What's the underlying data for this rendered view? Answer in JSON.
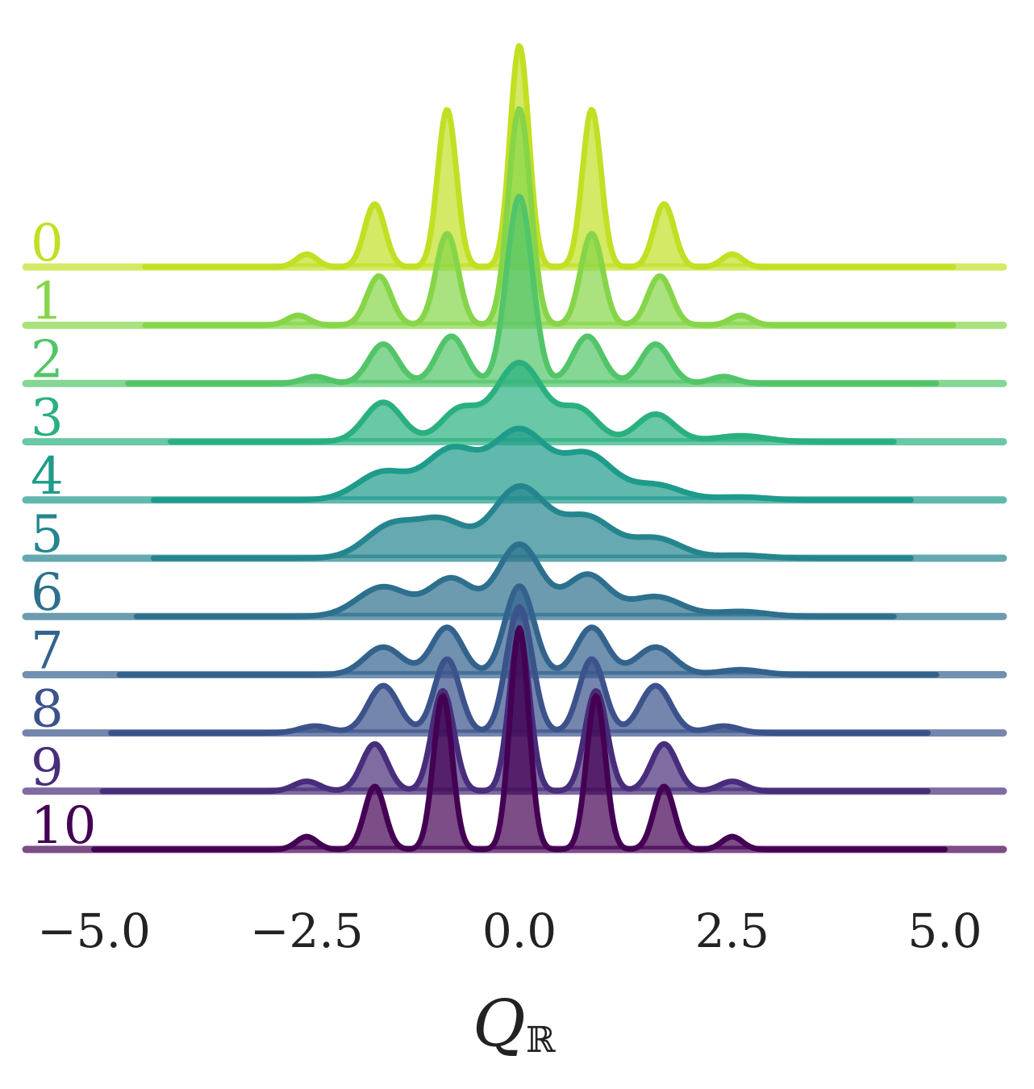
{
  "chart_data": {
    "type": "ridgeline",
    "xlabel": "Q",
    "xlabel_subscript": "ℝ",
    "xlim": [
      -6.0,
      6.0
    ],
    "xticks": [
      -5.0,
      -2.5,
      0.0,
      2.5,
      5.0
    ],
    "xtick_labels": [
      "−5.0",
      "−2.5",
      "0.0",
      "2.5",
      "5.0"
    ],
    "grid": false,
    "legend": "none",
    "series": [
      {
        "label": "0",
        "color": "#c2df23",
        "peaks": [
          {
            "x": -2.5,
            "h": 0.13,
            "w": 0.12
          },
          {
            "x": -1.7,
            "h": 0.64,
            "w": 0.12
          },
          {
            "x": -0.85,
            "h": 1.6,
            "w": 0.11
          },
          {
            "x": 0.0,
            "h": 2.25,
            "w": 0.11
          },
          {
            "x": 0.85,
            "h": 1.6,
            "w": 0.11
          },
          {
            "x": 1.7,
            "h": 0.64,
            "w": 0.12
          },
          {
            "x": 2.5,
            "h": 0.13,
            "w": 0.12
          }
        ],
        "range": [
          -4.4,
          5.1
        ]
      },
      {
        "label": "1",
        "color": "#86d549",
        "peaks": [
          {
            "x": -2.6,
            "h": 0.1,
            "w": 0.13
          },
          {
            "x": -1.65,
            "h": 0.5,
            "w": 0.14
          },
          {
            "x": -0.85,
            "h": 0.93,
            "w": 0.13
          },
          {
            "x": 0.0,
            "h": 2.2,
            "w": 0.13
          },
          {
            "x": 0.85,
            "h": 0.93,
            "w": 0.13
          },
          {
            "x": 1.65,
            "h": 0.5,
            "w": 0.14
          },
          {
            "x": 2.6,
            "h": 0.1,
            "w": 0.13
          }
        ],
        "range": [
          -4.4,
          5.1
        ]
      },
      {
        "label": "2",
        "color": "#52c569",
        "peaks": [
          {
            "x": -2.4,
            "h": 0.07,
            "w": 0.15
          },
          {
            "x": -1.6,
            "h": 0.4,
            "w": 0.17
          },
          {
            "x": -0.8,
            "h": 0.48,
            "w": 0.17
          },
          {
            "x": 0.0,
            "h": 1.9,
            "w": 0.15
          },
          {
            "x": 0.8,
            "h": 0.48,
            "w": 0.17
          },
          {
            "x": 1.6,
            "h": 0.4,
            "w": 0.17
          },
          {
            "x": 2.4,
            "h": 0.07,
            "w": 0.15
          }
        ],
        "range": [
          -4.6,
          4.9
        ]
      },
      {
        "label": "3",
        "color": "#2ab07f",
        "peaks": [
          {
            "x": -1.6,
            "h": 0.4,
            "w": 0.22
          },
          {
            "x": -0.7,
            "h": 0.32,
            "w": 0.22
          },
          {
            "x": 0.0,
            "h": 0.8,
            "w": 0.28
          },
          {
            "x": 0.7,
            "h": 0.32,
            "w": 0.22
          },
          {
            "x": 1.6,
            "h": 0.28,
            "w": 0.22
          },
          {
            "x": 2.6,
            "h": 0.06,
            "w": 0.3
          }
        ],
        "range": [
          -4.1,
          4.4
        ]
      },
      {
        "label": "4",
        "color": "#1e9b8a",
        "peaks": [
          {
            "x": -1.6,
            "h": 0.28,
            "w": 0.3
          },
          {
            "x": -0.8,
            "h": 0.5,
            "w": 0.3
          },
          {
            "x": 0.0,
            "h": 0.7,
            "w": 0.32
          },
          {
            "x": 0.8,
            "h": 0.45,
            "w": 0.3
          },
          {
            "x": 1.6,
            "h": 0.15,
            "w": 0.3
          },
          {
            "x": 2.6,
            "h": 0.03,
            "w": 0.3
          }
        ],
        "range": [
          -4.3,
          4.6
        ]
      },
      {
        "label": "5",
        "color": "#25858e",
        "peaks": [
          {
            "x": -1.5,
            "h": 0.33,
            "w": 0.3
          },
          {
            "x": -0.9,
            "h": 0.35,
            "w": 0.28
          },
          {
            "x": 0.0,
            "h": 0.72,
            "w": 0.32
          },
          {
            "x": 0.8,
            "h": 0.4,
            "w": 0.3
          },
          {
            "x": 1.6,
            "h": 0.2,
            "w": 0.3
          },
          {
            "x": 2.6,
            "h": 0.03,
            "w": 0.3
          }
        ],
        "range": [
          -4.3,
          4.6
        ]
      },
      {
        "label": "6",
        "color": "#2d708e",
        "peaks": [
          {
            "x": -1.6,
            "h": 0.3,
            "w": 0.3
          },
          {
            "x": -0.8,
            "h": 0.38,
            "w": 0.25
          },
          {
            "x": 0.0,
            "h": 0.73,
            "w": 0.25
          },
          {
            "x": 0.8,
            "h": 0.42,
            "w": 0.25
          },
          {
            "x": 1.6,
            "h": 0.2,
            "w": 0.3
          },
          {
            "x": 2.6,
            "h": 0.05,
            "w": 0.3
          }
        ],
        "range": [
          -4.5,
          4.4
        ]
      },
      {
        "label": "7",
        "color": "#33638d",
        "peaks": [
          {
            "x": -1.6,
            "h": 0.28,
            "w": 0.22
          },
          {
            "x": -0.85,
            "h": 0.48,
            "w": 0.18
          },
          {
            "x": 0.0,
            "h": 0.9,
            "w": 0.17
          },
          {
            "x": 0.85,
            "h": 0.48,
            "w": 0.18
          },
          {
            "x": 1.6,
            "h": 0.28,
            "w": 0.22
          },
          {
            "x": 2.6,
            "h": 0.05,
            "w": 0.25
          }
        ],
        "range": [
          -4.7,
          4.9
        ]
      },
      {
        "label": "8",
        "color": "#3b528b",
        "peaks": [
          {
            "x": -2.4,
            "h": 0.07,
            "w": 0.18
          },
          {
            "x": -1.6,
            "h": 0.48,
            "w": 0.18
          },
          {
            "x": -0.85,
            "h": 0.75,
            "w": 0.15
          },
          {
            "x": 0.0,
            "h": 1.28,
            "w": 0.15
          },
          {
            "x": 0.85,
            "h": 0.75,
            "w": 0.15
          },
          {
            "x": 1.6,
            "h": 0.48,
            "w": 0.18
          },
          {
            "x": 2.4,
            "h": 0.07,
            "w": 0.18
          }
        ],
        "range": [
          -4.8,
          4.8
        ]
      },
      {
        "label": "9",
        "color": "#472d7b",
        "peaks": [
          {
            "x": -2.5,
            "h": 0.1,
            "w": 0.15
          },
          {
            "x": -1.7,
            "h": 0.48,
            "w": 0.15
          },
          {
            "x": -0.9,
            "h": 1.02,
            "w": 0.13
          },
          {
            "x": 0.0,
            "h": 1.6,
            "w": 0.12
          },
          {
            "x": 0.9,
            "h": 1.02,
            "w": 0.13
          },
          {
            "x": 1.7,
            "h": 0.48,
            "w": 0.15
          },
          {
            "x": 2.5,
            "h": 0.1,
            "w": 0.15
          }
        ],
        "range": [
          -4.9,
          4.8
        ]
      },
      {
        "label": "10",
        "color": "#440154",
        "peaks": [
          {
            "x": -2.5,
            "h": 0.13,
            "w": 0.12
          },
          {
            "x": -1.7,
            "h": 0.64,
            "w": 0.12
          },
          {
            "x": -0.9,
            "h": 1.56,
            "w": 0.11
          },
          {
            "x": 0.0,
            "h": 2.25,
            "w": 0.11
          },
          {
            "x": 0.9,
            "h": 1.56,
            "w": 0.11
          },
          {
            "x": 1.7,
            "h": 0.64,
            "w": 0.12
          },
          {
            "x": 2.5,
            "h": 0.13,
            "w": 0.12
          }
        ],
        "range": [
          -5.0,
          5.0
        ]
      }
    ]
  }
}
